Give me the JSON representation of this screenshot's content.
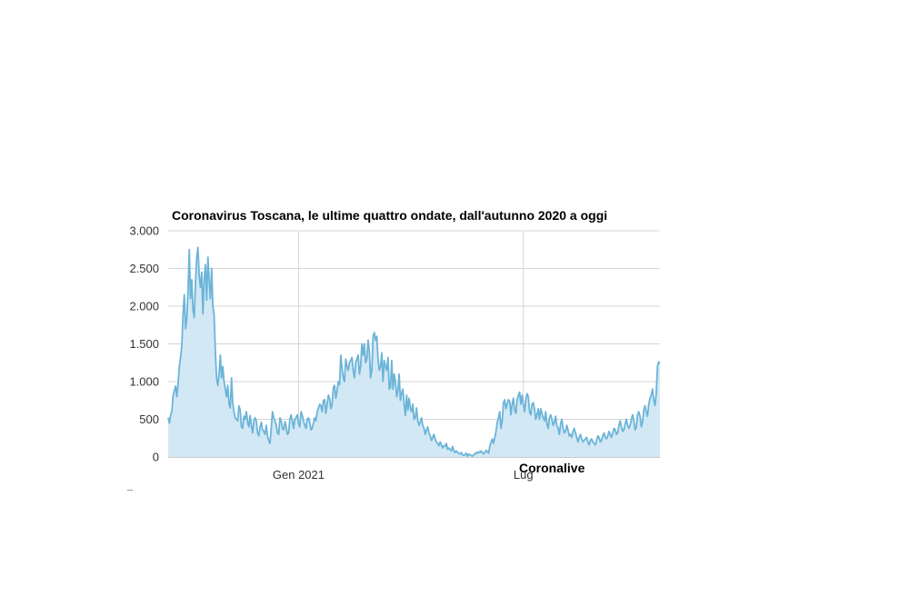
{
  "title": "Coronavirus Toscana, le ultime quattro ondate, dall'autunno 2020 a oggi",
  "credit": "Coronalive",
  "colors": {
    "line": "#6cb4d8",
    "fill": "#d3e8f5",
    "grid": "#d6d6d6",
    "axis": "#9a9a9a"
  },
  "chart_data": {
    "type": "area",
    "title": "Coronavirus Toscana, le ultime quattro ondate, dall'autunno 2020 a oggi",
    "xlabel": "",
    "ylabel": "",
    "ylim": [
      0,
      3000
    ],
    "grid": true,
    "x_ticks": [
      {
        "label": "Gen 2021",
        "index": 105
      },
      {
        "label": "Lug",
        "index": 286
      }
    ],
    "y_ticks": [
      {
        "label": "0",
        "value": 0
      },
      {
        "label": "500",
        "value": 500
      },
      {
        "label": "1.000",
        "value": 1000
      },
      {
        "label": "1.500",
        "value": 1500
      },
      {
        "label": "2.000",
        "value": 2000
      },
      {
        "label": "2.500",
        "value": 2500
      },
      {
        "label": "3.000",
        "value": 3000
      }
    ],
    "series": [
      {
        "values": [
          520,
          450,
          560,
          600,
          820,
          880,
          940,
          800,
          980,
          1200,
          1320,
          1480,
          1900,
          2150,
          1700,
          1850,
          2200,
          2750,
          2100,
          2350,
          1950,
          1850,
          2300,
          2650,
          2780,
          2400,
          2250,
          2450,
          1900,
          2350,
          2550,
          2080,
          2650,
          2350,
          2100,
          2500,
          2000,
          1880,
          1400,
          1050,
          950,
          1100,
          1350,
          1050,
          1200,
          1000,
          900,
          800,
          950,
          700,
          650,
          1050,
          720,
          600,
          520,
          500,
          480,
          680,
          620,
          400,
          380,
          540,
          500,
          600,
          460,
          400,
          550,
          420,
          320,
          480,
          520,
          480,
          320,
          280,
          400,
          460,
          360,
          340,
          300,
          420,
          280,
          220,
          180,
          380,
          600,
          520,
          480,
          430,
          320,
          300,
          520,
          480,
          380,
          360,
          470,
          400,
          300,
          320,
          500,
          560,
          480,
          380,
          500,
          520,
          560,
          440,
          400,
          600,
          550,
          480,
          420,
          380,
          500,
          520,
          460,
          360,
          380,
          450,
          520,
          480,
          600,
          650,
          700,
          680,
          600,
          750,
          760,
          580,
          700,
          820,
          780,
          640,
          700,
          920,
          950,
          780,
          880,
          1000,
          960,
          1350,
          1180,
          1050,
          1000,
          1300,
          1200,
          1150,
          1250,
          1280,
          1320,
          1150,
          1050,
          1250,
          1300,
          1350,
          1100,
          1200,
          1500,
          1350,
          1500,
          1250,
          1300,
          1550,
          1400,
          1050,
          1150,
          1600,
          1650,
          1550,
          1600,
          1300,
          1150,
          1200,
          1380,
          1000,
          1280,
          1200,
          1150,
          1320,
          900,
          920,
          1280,
          900,
          1100,
          1000,
          800,
          880,
          1100,
          750,
          850,
          900,
          700,
          550,
          820,
          620,
          780,
          650,
          600,
          700,
          500,
          520,
          650,
          480,
          420,
          460,
          520,
          420,
          380,
          300,
          360,
          400,
          320,
          280,
          220,
          260,
          300,
          240,
          200,
          180,
          150,
          200,
          160,
          120,
          150,
          140,
          180,
          100,
          120,
          100,
          80,
          140,
          90,
          60,
          80,
          60,
          50,
          40,
          60,
          30,
          20,
          30,
          50,
          10,
          40,
          30,
          20,
          10,
          30,
          40,
          60,
          50,
          70,
          60,
          80,
          60,
          40,
          60,
          90,
          70,
          50,
          140,
          200,
          240,
          180,
          260,
          340,
          460,
          520,
          600,
          380,
          480,
          720,
          760,
          640,
          700,
          760,
          740,
          560,
          700,
          780,
          620,
          580,
          760,
          820,
          860,
          700,
          820,
          700,
          600,
          760,
          840,
          800,
          600,
          560,
          700,
          720,
          640,
          500,
          560,
          640,
          500,
          640,
          580,
          520,
          480,
          600,
          440,
          380,
          520,
          560,
          500,
          420,
          460,
          540,
          420,
          380,
          300,
          440,
          500,
          380,
          320,
          340,
          420,
          360,
          280,
          300,
          260,
          340,
          380,
          320,
          260,
          200,
          260,
          300,
          240,
          200,
          220,
          240,
          260,
          200,
          160,
          220,
          240,
          200,
          180,
          160,
          220,
          280,
          260,
          200,
          220,
          280,
          320,
          260,
          240,
          280,
          340,
          300,
          260,
          320,
          380,
          360,
          300,
          320,
          420,
          480,
          400,
          340,
          360,
          440,
          500,
          420,
          380,
          420,
          500,
          560,
          480,
          360,
          400,
          560,
          600,
          540,
          400,
          460,
          620,
          680,
          600,
          540,
          700,
          780,
          820,
          900,
          760,
          680,
          840,
          1200,
          1260,
          1240
        ]
      }
    ]
  }
}
